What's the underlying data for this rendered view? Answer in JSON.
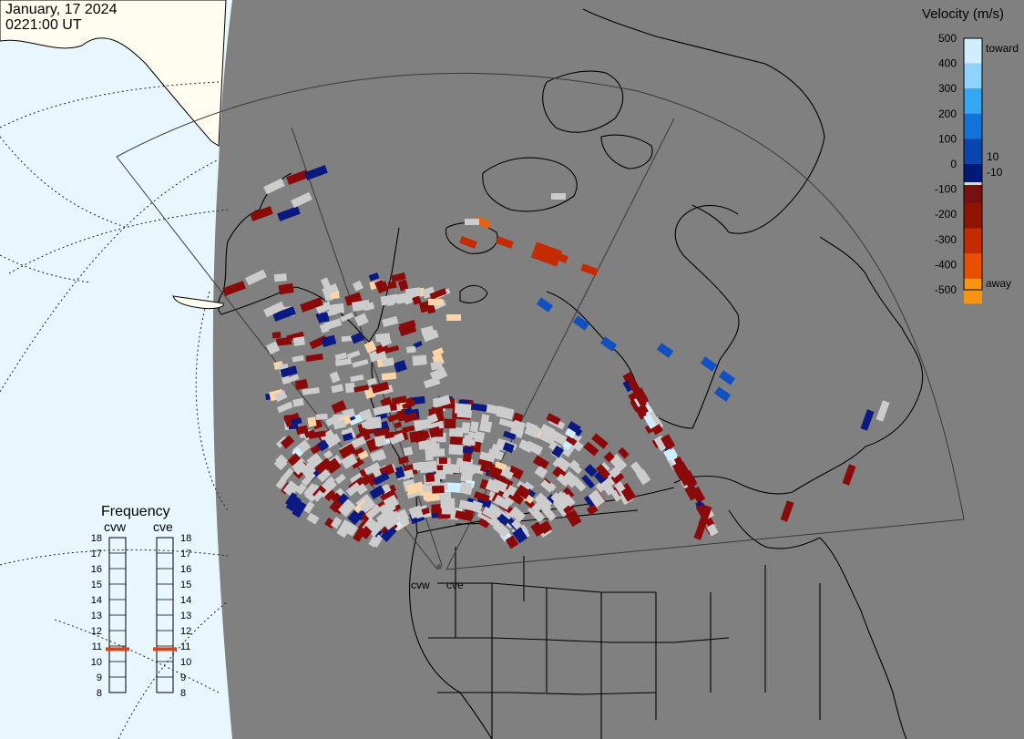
{
  "header": {
    "date": "January, 17 2024",
    "time": "0221:00 UT"
  },
  "colors": {
    "ocean": "#e8f6fe",
    "land_outside": "#fefdf0",
    "night": "#808080",
    "fov": "#d4d4d4",
    "gs": "#cccccc"
  },
  "velocity_scale": {
    "title": "Velocity (m/s)",
    "toward_label": "toward",
    "away_label": "away",
    "ticks": [
      "500",
      "400",
      "300",
      "200",
      "100",
      "0",
      "-100",
      "-200",
      "-300",
      "-400",
      "-500"
    ],
    "near_zero_labels": [
      "10",
      "-10"
    ],
    "colors": [
      "#cfeeff",
      "#8fd4ff",
      "#35a6f2",
      "#1473d8",
      "#0a46b0",
      "#001a7a",
      "#d9d9d9",
      "#7a0f0f",
      "#8f1300",
      "#c42b00",
      "#e84f00",
      "#f99410",
      "#fdd3a8"
    ]
  },
  "frequency": {
    "title": "Frequency",
    "radars": [
      {
        "name": "cvw",
        "value_mhz": 10.8
      },
      {
        "name": "cve",
        "value_mhz": 10.8
      }
    ],
    "ticks": [
      "18",
      "17",
      "16",
      "15",
      "14",
      "13",
      "12",
      "11",
      "10",
      "9",
      "8"
    ],
    "marker_color": "#e0411a"
  },
  "radar_sites": [
    {
      "name": "cvw"
    },
    {
      "name": "cve"
    }
  ]
}
